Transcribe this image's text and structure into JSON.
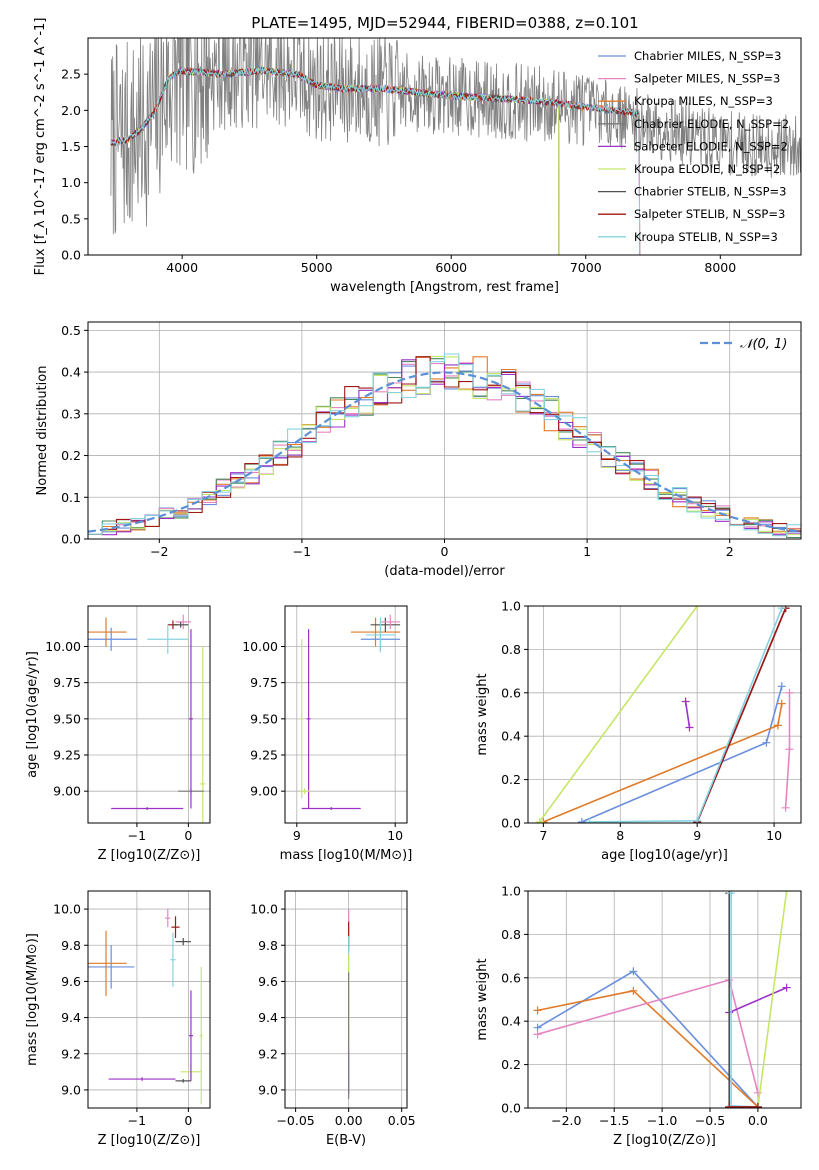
{
  "figure_title": "PLATE=1495, MJD=52944, FIBERID=0388, z=0.101",
  "palette": [
    "#6a8fdc",
    "#e585c2",
    "#e07b2a",
    "#7a7a7a",
    "#9a33c6",
    "#c6e66a",
    "#505050",
    "#a01818",
    "#86d2e0"
  ],
  "chart_data": [
    {
      "id": "spectrum",
      "type": "line",
      "title": "PLATE=1495, MJD=52944, FIBERID=0388, z=0.101",
      "xlabel": "wavelength [Angstrom, rest frame]",
      "ylabel": "Flux [f_λ 10^-17 erg cm^-2 s^-1 A^-1]",
      "xlim": [
        3300,
        8600
      ],
      "ylim": [
        0,
        3.0
      ],
      "xticks": [
        4000,
        5000,
        6000,
        7000,
        8000
      ],
      "yticks": [
        0.0,
        0.5,
        1.0,
        1.5,
        2.0,
        2.5
      ],
      "grid": false,
      "legend_position": "top-right",
      "data_color": "#808080",
      "data_approx": [
        [
          3500,
          1.55
        ],
        [
          3600,
          1.6
        ],
        [
          3700,
          1.7
        ],
        [
          3800,
          1.95
        ],
        [
          3900,
          2.4
        ],
        [
          4000,
          2.5
        ],
        [
          4200,
          2.5
        ],
        [
          4500,
          2.55
        ],
        [
          4800,
          2.55
        ],
        [
          5000,
          2.35
        ],
        [
          5300,
          2.3
        ],
        [
          5600,
          2.25
        ],
        [
          6000,
          2.2
        ],
        [
          6500,
          2.1
        ],
        [
          7000,
          2.05
        ],
        [
          7500,
          1.8
        ],
        [
          8000,
          1.55
        ],
        [
          8400,
          1.5
        ]
      ],
      "model_approx": [
        [
          3470,
          1.55
        ],
        [
          3600,
          1.6
        ],
        [
          3700,
          1.75
        ],
        [
          3800,
          2.0
        ],
        [
          3900,
          2.45
        ],
        [
          4000,
          2.55
        ],
        [
          4300,
          2.5
        ],
        [
          4600,
          2.55
        ],
        [
          4850,
          2.5
        ],
        [
          5000,
          2.35
        ],
        [
          5200,
          2.3
        ],
        [
          5500,
          2.3
        ],
        [
          6000,
          2.2
        ],
        [
          6500,
          2.15
        ],
        [
          6800,
          2.1
        ],
        [
          7000,
          2.05
        ],
        [
          7400,
          1.95
        ]
      ],
      "series": [
        {
          "name": "Chabrier MILES, N_SSP=3",
          "color": "#6a8fdc",
          "end": 7400
        },
        {
          "name": "Salpeter MILES, N_SSP=3",
          "color": "#e585c2",
          "end": 7400
        },
        {
          "name": "Kroupa MILES, N_SSP=3",
          "color": "#e07b2a",
          "end": 7400
        },
        {
          "name": "Chabrier ELODIE, N_SSP=2",
          "color": "#7a7a7a",
          "end": 6800
        },
        {
          "name": "Salpeter ELODIE, N_SSP=2",
          "color": "#9a33c6",
          "end": 6800
        },
        {
          "name": "Kroupa ELODIE, N_SSP=2",
          "color": "#c6e66a",
          "end": 6800
        },
        {
          "name": "Chabrier STELIB, N_SSP=3",
          "color": "#505050",
          "end": 7400
        },
        {
          "name": "Salpeter STELIB, N_SSP=3",
          "color": "#a01818",
          "end": 7400
        },
        {
          "name": "Kroupa STELIB, N_SSP=3",
          "color": "#86d2e0",
          "end": 7400
        }
      ]
    },
    {
      "id": "residuals",
      "type": "line",
      "xlabel": "(data-model)/error",
      "ylabel": "Normed distribution",
      "xlim": [
        -2.5,
        2.5
      ],
      "ylim": [
        0,
        0.52
      ],
      "xticks": [
        -2,
        -1,
        0,
        1,
        2
      ],
      "yticks": [
        0.0,
        0.1,
        0.2,
        0.3,
        0.4,
        0.5
      ],
      "grid": true,
      "legend_position": "top-right",
      "gaussian": {
        "name": "𝒩(0, 1)",
        "color": "#5b8fd6"
      },
      "bin_width": 0.1,
      "hist_series": [
        {
          "color": "#6a8fdc",
          "seed": 11
        },
        {
          "color": "#e585c2",
          "seed": 23
        },
        {
          "color": "#e07b2a",
          "seed": 37
        },
        {
          "color": "#4a8a5a",
          "seed": 41
        },
        {
          "color": "#9a33c6",
          "seed": 53
        },
        {
          "color": "#c6e66a",
          "seed": 67
        },
        {
          "color": "#a01818",
          "seed": 79
        },
        {
          "color": "#86d2e0",
          "seed": 83
        }
      ]
    },
    {
      "id": "age_vs_Z",
      "type": "scatter",
      "xlabel": "Z [log10(Z/Z⊙)]",
      "ylabel": "age  [log10(age/yr)]",
      "xlim": [
        -1.95,
        0.42
      ],
      "ylim": [
        8.78,
        10.28
      ],
      "xticks": [
        -1,
        0
      ],
      "yticks": [
        9.0,
        9.25,
        9.5,
        9.75,
        10.0
      ],
      "points": [
        {
          "x": -1.5,
          "y": 10.05,
          "xerr": 0.5,
          "yerr": 0.08,
          "color": "#6a8fdc"
        },
        {
          "x": -1.6,
          "y": 10.1,
          "xerr": 0.4,
          "yerr": 0.1,
          "color": "#e07b2a"
        },
        {
          "x": -0.1,
          "y": 10.17,
          "xerr": 0.15,
          "yerr": 0.05,
          "color": "#e585c2"
        },
        {
          "x": -0.3,
          "y": 10.15,
          "xerr": 0.1,
          "yerr": 0.03,
          "color": "#a01818"
        },
        {
          "x": -0.15,
          "y": 10.15,
          "xerr": 0.15,
          "yerr": 0.02,
          "color": "#505050"
        },
        {
          "x": -0.4,
          "y": 10.05,
          "xerr": 0.4,
          "yerr": 0.1,
          "color": "#86d2e0"
        },
        {
          "x": 0.28,
          "y": 9.05,
          "xerr": 0.05,
          "yerr": 0.95,
          "color": "#c6e66a"
        },
        {
          "x": 0.05,
          "y": 9.0,
          "xerr": 0.25,
          "yerr": 0.02,
          "color": "#7a7a7a"
        },
        {
          "x": 0.05,
          "y": 9.5,
          "xerr": 0.04,
          "yerr": 0.62,
          "color": "#9a33c6"
        },
        {
          "x": -0.8,
          "y": 8.88,
          "xerr": 0.7,
          "yerr": 0.01,
          "color": "#9a33c6"
        }
      ]
    },
    {
      "id": "age_vs_mass",
      "type": "scatter",
      "xlabel": "mass [log10(M/M⊙)]",
      "ylabel": "",
      "xlim": [
        8.88,
        10.12
      ],
      "ylim": [
        8.78,
        10.28
      ],
      "xticks": [
        9,
        10
      ],
      "yticks": [
        9.0,
        9.25,
        9.5,
        9.75,
        10.0
      ],
      "points": [
        {
          "x": 9.8,
          "y": 10.1,
          "xerr": 0.25,
          "yerr": 0.1,
          "color": "#e07b2a"
        },
        {
          "x": 9.85,
          "y": 10.05,
          "xerr": 0.2,
          "yerr": 0.08,
          "color": "#6a8fdc"
        },
        {
          "x": 9.9,
          "y": 10.15,
          "xerr": 0.15,
          "yerr": 0.05,
          "color": "#505050"
        },
        {
          "x": 9.95,
          "y": 10.17,
          "xerr": 0.1,
          "yerr": 0.05,
          "color": "#e585c2"
        },
        {
          "x": 9.85,
          "y": 10.08,
          "xerr": 0.15,
          "yerr": 0.12,
          "color": "#86d2e0"
        },
        {
          "x": 9.12,
          "y": 9.5,
          "xerr": 0.02,
          "yerr": 0.62,
          "color": "#9a33c6"
        },
        {
          "x": 9.08,
          "y": 9.0,
          "xerr": 0.05,
          "yerr": 0.02,
          "color": "#c6e66a"
        },
        {
          "x": 9.35,
          "y": 8.88,
          "xerr": 0.3,
          "yerr": 0.01,
          "color": "#9a33c6"
        },
        {
          "x": 9.05,
          "y": 9.5,
          "xerr": 0.02,
          "yerr": 0.55,
          "color": "#c6e66a"
        }
      ]
    },
    {
      "id": "weight_vs_age",
      "type": "line",
      "xlabel": "age  [log10(age/yr)]",
      "ylabel": "mass weight",
      "xlim": [
        6.8,
        10.35
      ],
      "ylim": [
        0,
        1.0
      ],
      "xticks": [
        7,
        8,
        9,
        10
      ],
      "yticks": [
        0.0,
        0.2,
        0.4,
        0.6,
        0.8,
        1.0
      ],
      "grid": true,
      "series": [
        {
          "color": "#6a8fdc",
          "points": [
            [
              7.5,
              0.005
            ],
            [
              9.9,
              0.37
            ],
            [
              10.1,
              0.63
            ]
          ]
        },
        {
          "color": "#e07b2a",
          "points": [
            [
              7.0,
              0.005
            ],
            [
              10.05,
              0.45
            ],
            [
              10.1,
              0.55
            ]
          ]
        },
        {
          "color": "#e585c2",
          "points": [
            [
              10.15,
              0.07
            ],
            [
              10.2,
              0.34
            ],
            [
              10.2,
              0.6
            ]
          ]
        },
        {
          "color": "#9a33c6",
          "points": [
            [
              8.85,
              0.56
            ],
            [
              8.9,
              0.44
            ]
          ]
        },
        {
          "color": "#c6e66a",
          "points": [
            [
              6.95,
              0.005
            ],
            [
              9.0,
              1.0
            ]
          ]
        },
        {
          "color": "#505050",
          "points": [
            [
              9.0,
              0.005
            ],
            [
              10.15,
              0.99
            ]
          ]
        },
        {
          "color": "#a01818",
          "points": [
            [
              9.0,
              0.005
            ],
            [
              10.15,
              0.99
            ]
          ]
        },
        {
          "color": "#86d2e0",
          "points": [
            [
              7.6,
              0.005
            ],
            [
              9.0,
              0.01
            ],
            [
              10.1,
              0.99
            ]
          ]
        }
      ]
    },
    {
      "id": "mass_vs_Z",
      "type": "scatter",
      "xlabel": "Z [log10(Z/Z⊙)]",
      "ylabel": "mass [log10(M/M⊙)]",
      "xlim": [
        -1.95,
        0.42
      ],
      "ylim": [
        8.9,
        10.1
      ],
      "xticks": [
        -1,
        0
      ],
      "yticks": [
        9.0,
        9.2,
        9.4,
        9.6,
        9.8,
        10.0
      ],
      "points": [
        {
          "x": -1.5,
          "y": 9.68,
          "xerr": 0.45,
          "yerr": 0.12,
          "color": "#6a8fdc"
        },
        {
          "x": -1.6,
          "y": 9.7,
          "xerr": 0.4,
          "yerr": 0.18,
          "color": "#e07b2a"
        },
        {
          "x": -0.4,
          "y": 9.95,
          "xerr": 0.05,
          "yerr": 0.05,
          "color": "#e585c2"
        },
        {
          "x": -0.25,
          "y": 9.9,
          "xerr": 0.08,
          "yerr": 0.06,
          "color": "#a01818"
        },
        {
          "x": -0.1,
          "y": 9.82,
          "xerr": 0.15,
          "yerr": 0.02,
          "color": "#505050"
        },
        {
          "x": -0.3,
          "y": 9.72,
          "xerr": 0.05,
          "yerr": 0.15,
          "color": "#86d2e0"
        },
        {
          "x": 0.25,
          "y": 9.3,
          "xerr": 0.03,
          "yerr": 0.38,
          "color": "#c6e66a"
        },
        {
          "x": 0.05,
          "y": 9.1,
          "xerr": 0.2,
          "yerr": 0.05,
          "color": "#c6e66a"
        },
        {
          "x": 0.05,
          "y": 9.3,
          "xerr": 0.04,
          "yerr": 0.25,
          "color": "#9a33c6"
        },
        {
          "x": -0.9,
          "y": 9.06,
          "xerr": 0.65,
          "yerr": 0.01,
          "color": "#9a33c6"
        },
        {
          "x": -0.1,
          "y": 9.05,
          "xerr": 0.15,
          "yerr": 0.01,
          "color": "#505050"
        }
      ]
    },
    {
      "id": "mass_vs_EBV",
      "type": "scatter",
      "xlabel": "E(B-V)",
      "ylabel": "",
      "xlim": [
        -0.06,
        0.055
      ],
      "ylim": [
        8.9,
        10.1
      ],
      "xticks": [
        -0.05,
        0.0,
        0.05
      ],
      "yticks": [
        9.0,
        9.2,
        9.4,
        9.6,
        9.8,
        10.0
      ],
      "points": [
        {
          "x": 0.0,
          "y": 9.9,
          "xerr": 0.0,
          "yerr": 0.1,
          "color": "#e585c2"
        },
        {
          "x": 0.0,
          "y": 9.85,
          "xerr": 0.0,
          "yerr": 0.08,
          "color": "#a01818"
        },
        {
          "x": 0.0,
          "y": 9.75,
          "xerr": 0.0,
          "yerr": 0.1,
          "color": "#86d2e0"
        },
        {
          "x": 0.0,
          "y": 9.5,
          "xerr": 0.0,
          "yerr": 0.25,
          "color": "#c6e66a"
        },
        {
          "x": 0.0,
          "y": 9.1,
          "xerr": 0.0,
          "yerr": 0.12,
          "color": "#9a33c6"
        },
        {
          "x": 0.0,
          "y": 9.3,
          "xerr": 0.0,
          "yerr": 0.35,
          "color": "#7a7a7a"
        }
      ]
    },
    {
      "id": "weight_vs_Z",
      "type": "line",
      "xlabel": "Z [log10(Z/Z⊙)]",
      "ylabel": "mass weight",
      "xlim": [
        -2.4,
        0.45
      ],
      "ylim": [
        0,
        1.0
      ],
      "xticks": [
        -2.0,
        -1.5,
        -1.0,
        -0.5,
        0.0
      ],
      "yticks": [
        0.0,
        0.2,
        0.4,
        0.6,
        0.8,
        1.0
      ],
      "grid": true,
      "series": [
        {
          "color": "#6a8fdc",
          "points": [
            [
              -2.3,
              0.37
            ],
            [
              -1.3,
              0.63
            ],
            [
              0.0,
              0.005
            ]
          ]
        },
        {
          "color": "#e07b2a",
          "points": [
            [
              -2.3,
              0.45
            ],
            [
              -1.3,
              0.54
            ],
            [
              0.0,
              0.005
            ]
          ]
        },
        {
          "color": "#e585c2",
          "points": [
            [
              -2.3,
              0.34
            ],
            [
              -0.3,
              0.59
            ],
            [
              0.0,
              0.07
            ]
          ]
        },
        {
          "color": "#9a33c6",
          "points": [
            [
              -0.3,
              0.44
            ],
            [
              0.3,
              0.555
            ]
          ]
        },
        {
          "color": "#c6e66a",
          "points": [
            [
              0.0,
              0.005
            ],
            [
              0.3,
              1.0
            ]
          ]
        },
        {
          "color": "#505050",
          "points": [
            [
              -0.3,
              0.99
            ],
            [
              -0.3,
              0.005
            ],
            [
              0.0,
              0.005
            ]
          ]
        },
        {
          "color": "#86d2e0",
          "points": [
            [
              -0.28,
              0.99
            ],
            [
              -0.28,
              0.01
            ],
            [
              0.0,
              0.005
            ]
          ]
        },
        {
          "color": "#a01818",
          "points": [
            [
              -0.3,
              0.005
            ],
            [
              0.0,
              0.005
            ]
          ]
        }
      ]
    }
  ]
}
